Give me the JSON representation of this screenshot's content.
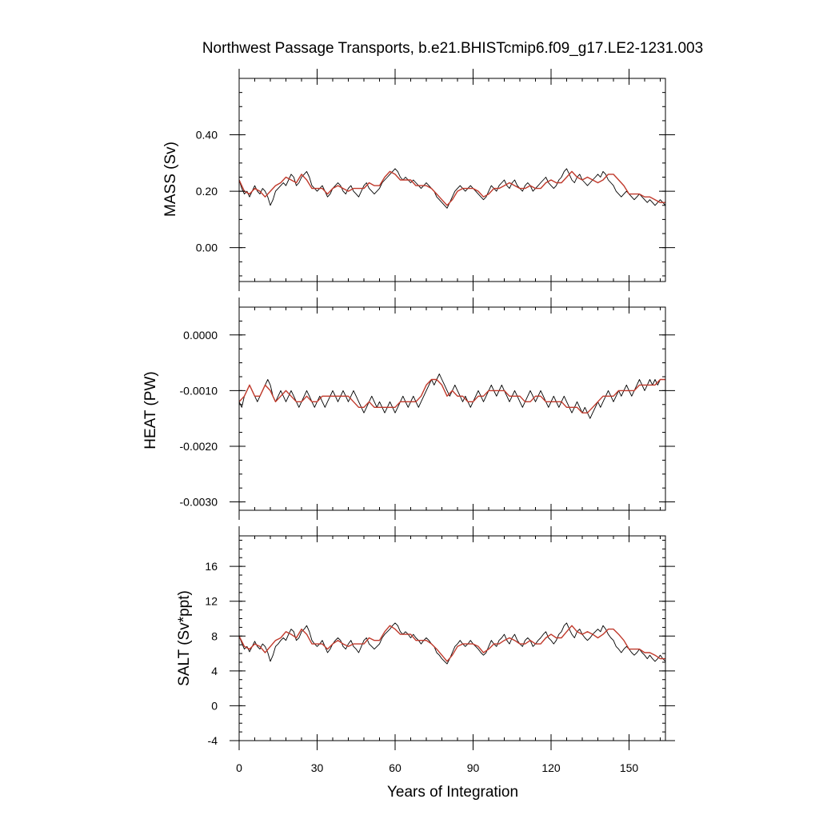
{
  "title": "Northwest Passage Transports, b.e21.BHISTcmip6.f09_g17.LE2-1231.003",
  "xlabel": "Years of Integration",
  "colors": {
    "monthly": "#000000",
    "smoothed": "#c0392b",
    "frame": "#000000"
  },
  "chart_data": [
    {
      "type": "line",
      "ylabel": "MASS (Sv)",
      "xlim": [
        0,
        164
      ],
      "ylim": [
        -0.12,
        0.6
      ],
      "yticks": [
        0.0,
        0.2,
        0.4
      ],
      "ytick_labels": [
        "0.00",
        "0.20",
        "0.40"
      ],
      "xticks": [
        0,
        30,
        60,
        90,
        120,
        150
      ],
      "xtick_labels": [
        "0",
        "30",
        "60",
        "90",
        "120",
        "150"
      ],
      "series": [
        {
          "style": "monthly-thin-black",
          "x_start": 0,
          "x_step": 1,
          "values": [
            0.24,
            0.21,
            0.19,
            0.2,
            0.18,
            0.2,
            0.22,
            0.2,
            0.19,
            0.21,
            0.2,
            0.18,
            0.15,
            0.17,
            0.2,
            0.21,
            0.22,
            0.23,
            0.22,
            0.24,
            0.26,
            0.25,
            0.22,
            0.23,
            0.25,
            0.26,
            0.27,
            0.25,
            0.22,
            0.21,
            0.2,
            0.21,
            0.22,
            0.2,
            0.18,
            0.19,
            0.21,
            0.22,
            0.23,
            0.22,
            0.2,
            0.19,
            0.21,
            0.22,
            0.2,
            0.19,
            0.18,
            0.2,
            0.22,
            0.23,
            0.21,
            0.2,
            0.19,
            0.2,
            0.21,
            0.23,
            0.24,
            0.25,
            0.26,
            0.27,
            0.28,
            0.27,
            0.25,
            0.24,
            0.25,
            0.24,
            0.23,
            0.24,
            0.23,
            0.22,
            0.21,
            0.22,
            0.23,
            0.22,
            0.21,
            0.2,
            0.18,
            0.17,
            0.16,
            0.15,
            0.14,
            0.16,
            0.18,
            0.2,
            0.21,
            0.22,
            0.21,
            0.2,
            0.21,
            0.22,
            0.21,
            0.2,
            0.19,
            0.18,
            0.17,
            0.18,
            0.2,
            0.22,
            0.21,
            0.2,
            0.22,
            0.23,
            0.24,
            0.22,
            0.21,
            0.23,
            0.24,
            0.22,
            0.21,
            0.2,
            0.22,
            0.23,
            0.22,
            0.2,
            0.21,
            0.22,
            0.23,
            0.24,
            0.25,
            0.23,
            0.22,
            0.21,
            0.22,
            0.24,
            0.25,
            0.27,
            0.28,
            0.26,
            0.24,
            0.23,
            0.25,
            0.26,
            0.24,
            0.23,
            0.22,
            0.23,
            0.24,
            0.25,
            0.26,
            0.25,
            0.27,
            0.26,
            0.24,
            0.23,
            0.22,
            0.2,
            0.19,
            0.18,
            0.19,
            0.2,
            0.19,
            0.18,
            0.17,
            0.18,
            0.19,
            0.18,
            0.17,
            0.16,
            0.17,
            0.16,
            0.15,
            0.16,
            0.17,
            0.16,
            0.15
          ]
        },
        {
          "style": "smoothed-red",
          "x_start": 0,
          "x_step": 2,
          "values": [
            0.24,
            0.2,
            0.19,
            0.21,
            0.2,
            0.18,
            0.2,
            0.22,
            0.23,
            0.25,
            0.24,
            0.23,
            0.26,
            0.24,
            0.21,
            0.21,
            0.21,
            0.19,
            0.21,
            0.22,
            0.21,
            0.2,
            0.21,
            0.21,
            0.21,
            0.23,
            0.22,
            0.22,
            0.25,
            0.27,
            0.26,
            0.24,
            0.24,
            0.24,
            0.22,
            0.22,
            0.22,
            0.21,
            0.19,
            0.17,
            0.15,
            0.17,
            0.2,
            0.21,
            0.21,
            0.21,
            0.2,
            0.18,
            0.19,
            0.21,
            0.21,
            0.22,
            0.23,
            0.22,
            0.21,
            0.21,
            0.22,
            0.21,
            0.21,
            0.23,
            0.24,
            0.23,
            0.23,
            0.25,
            0.27,
            0.25,
            0.24,
            0.25,
            0.24,
            0.23,
            0.24,
            0.26,
            0.26,
            0.24,
            0.22,
            0.19,
            0.19,
            0.19,
            0.18,
            0.18,
            0.17,
            0.16,
            0.16
          ]
        }
      ]
    },
    {
      "type": "line",
      "ylabel": "HEAT (PW)",
      "xlim": [
        0,
        164
      ],
      "ylim": [
        -0.00315,
        0.0005
      ],
      "yticks": [
        -0.003,
        -0.002,
        -0.001,
        0.0
      ],
      "ytick_labels": [
        "-0.0030",
        "-0.0020",
        "-0.0010",
        "0.0000"
      ],
      "xticks": [
        0,
        30,
        60,
        90,
        120,
        150
      ],
      "xtick_labels": [
        "0",
        "30",
        "60",
        "90",
        "120",
        "150"
      ],
      "series": [
        {
          "style": "monthly-thin-black",
          "x_start": 0,
          "x_step": 1,
          "values": [
            -0.0012,
            -0.0013,
            -0.0011,
            -0.001,
            -0.0009,
            -0.001,
            -0.0011,
            -0.0012,
            -0.0011,
            -0.001,
            -0.0009,
            -0.0008,
            -0.0009,
            -0.0011,
            -0.0012,
            -0.0011,
            -0.001,
            -0.0011,
            -0.0012,
            -0.0011,
            -0.001,
            -0.0011,
            -0.0012,
            -0.0013,
            -0.0012,
            -0.0011,
            -0.001,
            -0.0011,
            -0.0012,
            -0.0013,
            -0.0012,
            -0.0011,
            -0.0012,
            -0.0013,
            -0.0012,
            -0.0011,
            -0.001,
            -0.0011,
            -0.0012,
            -0.0011,
            -0.001,
            -0.0011,
            -0.0012,
            -0.0011,
            -0.001,
            -0.0011,
            -0.0012,
            -0.0013,
            -0.0014,
            -0.0013,
            -0.0012,
            -0.0011,
            -0.0012,
            -0.0013,
            -0.0012,
            -0.0013,
            -0.0014,
            -0.0013,
            -0.0012,
            -0.0013,
            -0.0014,
            -0.0013,
            -0.0012,
            -0.0011,
            -0.0012,
            -0.0013,
            -0.0012,
            -0.0011,
            -0.0012,
            -0.0013,
            -0.0012,
            -0.0011,
            -0.001,
            -0.0009,
            -0.0008,
            -0.0009,
            -0.0008,
            -0.0007,
            -0.0008,
            -0.0009,
            -0.001,
            -0.0011,
            -0.001,
            -0.0009,
            -0.001,
            -0.0011,
            -0.0012,
            -0.0011,
            -0.0012,
            -0.0013,
            -0.0012,
            -0.0011,
            -0.001,
            -0.0011,
            -0.0012,
            -0.0011,
            -0.001,
            -0.0009,
            -0.001,
            -0.0011,
            -0.001,
            -0.0009,
            -0.001,
            -0.0011,
            -0.0012,
            -0.0011,
            -0.001,
            -0.0011,
            -0.0012,
            -0.0013,
            -0.0012,
            -0.0011,
            -0.001,
            -0.0011,
            -0.0012,
            -0.0011,
            -0.001,
            -0.0011,
            -0.0012,
            -0.0013,
            -0.0012,
            -0.0011,
            -0.0012,
            -0.0013,
            -0.0012,
            -0.0011,
            -0.0012,
            -0.0013,
            -0.0014,
            -0.0013,
            -0.0012,
            -0.0013,
            -0.0014,
            -0.0013,
            -0.0014,
            -0.0015,
            -0.0014,
            -0.0013,
            -0.0012,
            -0.0013,
            -0.0012,
            -0.0011,
            -0.001,
            -0.0011,
            -0.0012,
            -0.0011,
            -0.001,
            -0.0011,
            -0.001,
            -0.0009,
            -0.001,
            -0.0011,
            -0.001,
            -0.0009,
            -0.0008,
            -0.0009,
            -0.001,
            -0.0009,
            -0.0008,
            -0.0009,
            -0.0008,
            -0.0009,
            -0.0008
          ]
        },
        {
          "style": "smoothed-red",
          "x_start": 0,
          "x_step": 2,
          "values": [
            -0.0012,
            -0.0011,
            -0.0009,
            -0.0011,
            -0.0011,
            -0.0009,
            -0.001,
            -0.0012,
            -0.0011,
            -0.001,
            -0.0011,
            -0.0012,
            -0.0012,
            -0.0011,
            -0.0012,
            -0.0012,
            -0.0011,
            -0.0011,
            -0.0011,
            -0.0011,
            -0.0011,
            -0.0011,
            -0.0012,
            -0.0013,
            -0.0013,
            -0.0012,
            -0.0013,
            -0.0013,
            -0.0013,
            -0.0013,
            -0.0013,
            -0.0012,
            -0.0012,
            -0.0012,
            -0.0012,
            -0.0011,
            -0.0009,
            -0.0008,
            -0.0008,
            -0.0009,
            -0.0011,
            -0.001,
            -0.0011,
            -0.0011,
            -0.0012,
            -0.0012,
            -0.0011,
            -0.0011,
            -0.001,
            -0.001,
            -0.001,
            -0.001,
            -0.0011,
            -0.0011,
            -0.0011,
            -0.0012,
            -0.0012,
            -0.0011,
            -0.0011,
            -0.0012,
            -0.0012,
            -0.0012,
            -0.0012,
            -0.0013,
            -0.0013,
            -0.0013,
            -0.0014,
            -0.0014,
            -0.0013,
            -0.0012,
            -0.0011,
            -0.0011,
            -0.0011,
            -0.001,
            -0.001,
            -0.001,
            -0.001,
            -0.0009,
            -0.0009,
            -0.0009,
            -0.0009,
            -0.0008,
            -0.0008
          ]
        }
      ]
    },
    {
      "type": "line",
      "ylabel": "SALT (Sv*ppt)",
      "xlim": [
        0,
        164
      ],
      "ylim": [
        -4,
        19.5
      ],
      "yticks": [
        -4,
        0,
        4,
        8,
        12,
        16
      ],
      "ytick_labels": [
        "-4",
        "0",
        "4",
        "8",
        "12",
        "16"
      ],
      "xticks": [
        0,
        30,
        60,
        90,
        120,
        150
      ],
      "xtick_labels": [
        "0",
        "30",
        "60",
        "90",
        "120",
        "150"
      ],
      "series": [
        {
          "style": "monthly-thin-black",
          "x_start": 0,
          "x_step": 1,
          "values": [
            8.0,
            7.2,
            6.5,
            6.8,
            6.2,
            6.8,
            7.4,
            6.8,
            6.5,
            7.1,
            6.8,
            6.1,
            5.1,
            5.8,
            6.8,
            7.1,
            7.5,
            7.8,
            7.5,
            8.2,
            8.8,
            8.5,
            7.5,
            7.8,
            8.5,
            8.8,
            9.2,
            8.5,
            7.5,
            7.1,
            6.8,
            7.1,
            7.5,
            6.8,
            6.1,
            6.5,
            7.1,
            7.5,
            7.8,
            7.5,
            6.8,
            6.5,
            7.1,
            7.5,
            6.8,
            6.5,
            6.1,
            6.8,
            7.5,
            7.8,
            7.1,
            6.8,
            6.5,
            6.8,
            7.1,
            7.8,
            8.2,
            8.5,
            8.8,
            9.2,
            9.5,
            9.2,
            8.5,
            8.2,
            8.5,
            8.2,
            7.8,
            8.2,
            7.8,
            7.5,
            7.1,
            7.5,
            7.8,
            7.5,
            7.1,
            6.8,
            6.1,
            5.8,
            5.4,
            5.1,
            4.8,
            5.4,
            6.1,
            6.8,
            7.1,
            7.5,
            7.1,
            6.8,
            7.1,
            7.5,
            7.1,
            6.8,
            6.5,
            6.1,
            5.8,
            6.1,
            6.8,
            7.5,
            7.1,
            6.8,
            7.5,
            7.8,
            8.2,
            7.5,
            7.1,
            7.8,
            8.2,
            7.5,
            7.1,
            6.8,
            7.5,
            7.8,
            7.5,
            6.8,
            7.1,
            7.5,
            7.8,
            8.2,
            8.5,
            7.8,
            7.5,
            7.1,
            7.5,
            8.2,
            8.5,
            9.2,
            9.5,
            8.8,
            8.2,
            7.8,
            8.5,
            8.8,
            8.2,
            7.8,
            7.5,
            7.8,
            8.2,
            8.5,
            8.8,
            8.5,
            9.2,
            8.8,
            8.2,
            7.8,
            7.5,
            6.8,
            6.5,
            6.1,
            6.5,
            6.8,
            6.5,
            6.1,
            5.8,
            6.1,
            6.5,
            6.1,
            5.8,
            5.4,
            5.8,
            5.4,
            5.1,
            5.4,
            5.8,
            5.4,
            5.1
          ]
        },
        {
          "style": "smoothed-red",
          "x_start": 0,
          "x_step": 2,
          "values": [
            8.0,
            6.8,
            6.5,
            7.1,
            6.8,
            6.1,
            6.8,
            7.5,
            7.8,
            8.5,
            8.2,
            7.8,
            8.8,
            8.2,
            7.1,
            7.1,
            7.1,
            6.5,
            7.1,
            7.5,
            7.1,
            6.8,
            7.1,
            7.1,
            7.1,
            7.8,
            7.5,
            7.5,
            8.5,
            9.2,
            8.8,
            8.2,
            8.2,
            8.2,
            7.5,
            7.5,
            7.5,
            7.1,
            6.5,
            5.8,
            5.1,
            5.8,
            6.8,
            7.1,
            7.1,
            7.1,
            6.8,
            6.1,
            6.5,
            7.1,
            7.1,
            7.5,
            7.8,
            7.5,
            7.1,
            7.1,
            7.5,
            7.1,
            7.1,
            7.8,
            8.2,
            7.8,
            7.8,
            8.5,
            9.2,
            8.5,
            8.2,
            8.5,
            8.2,
            7.8,
            8.2,
            8.8,
            8.8,
            8.2,
            7.5,
            6.5,
            6.5,
            6.5,
            6.1,
            6.1,
            5.8,
            5.4,
            5.4
          ]
        }
      ]
    }
  ]
}
